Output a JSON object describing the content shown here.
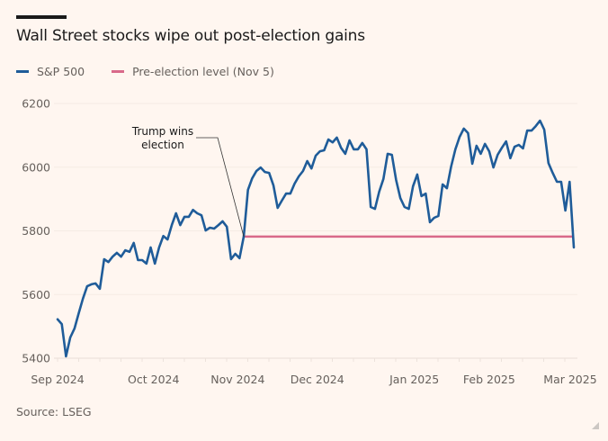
{
  "header": {
    "title": "Wall Street stocks wipe out post-election gains"
  },
  "legend": [
    {
      "label": "S&P 500",
      "color": "#1f5c99"
    },
    {
      "label": "Pre-election level (Nov 5)",
      "color": "#d9698a"
    }
  ],
  "footer": {
    "source": "Source: LSEG"
  },
  "chart_data": {
    "type": "line",
    "title": "Wall Street stocks wipe out post-election gains",
    "xlabel": "",
    "ylabel": "",
    "ylim": [
      5400,
      6200
    ],
    "yticks": [
      5400,
      5600,
      5800,
      6000,
      6200
    ],
    "xtick_labels": [
      "Sep 2024",
      "Oct 2024",
      "Nov 2024",
      "Dec 2024",
      "Jan 2025",
      "Feb 2025",
      "Mar 2025"
    ],
    "xtick_positions": [
      0,
      0.186,
      0.349,
      0.503,
      0.691,
      0.836,
      0.993
    ],
    "grid": true,
    "legend_position": "top-left",
    "series": [
      {
        "name": "S&P 500",
        "color": "#1f5c99",
        "x_range": [
          "Sep 2024",
          "Mar 2025"
        ],
        "values": [
          5522,
          5507,
          5406,
          5465,
          5493,
          5541,
          5587,
          5626,
          5632,
          5635,
          5618,
          5711,
          5702,
          5719,
          5731,
          5719,
          5739,
          5734,
          5762,
          5708,
          5708,
          5697,
          5748,
          5697,
          5748,
          5784,
          5773,
          5818,
          5855,
          5818,
          5844,
          5844,
          5866,
          5855,
          5849,
          5801,
          5810,
          5807,
          5818,
          5830,
          5813,
          5711,
          5728,
          5714,
          5782,
          5929,
          5965,
          5988,
          5999,
          5985,
          5982,
          5943,
          5872,
          5895,
          5917,
          5917,
          5948,
          5971,
          5988,
          6019,
          5996,
          6036,
          6050,
          6053,
          6087,
          6078,
          6093,
          6061,
          6042,
          6084,
          6056,
          6056,
          6076,
          6056,
          5875,
          5869,
          5923,
          5963,
          6042,
          6039,
          5960,
          5903,
          5875,
          5869,
          5940,
          5977,
          5909,
          5917,
          5827,
          5841,
          5847,
          5946,
          5934,
          6002,
          6056,
          6095,
          6121,
          6107,
          6011,
          6067,
          6042,
          6073,
          6050,
          5999,
          6039,
          6061,
          6081,
          6028,
          6064,
          6070,
          6059,
          6115,
          6115,
          6129,
          6146,
          6118,
          6013,
          5982,
          5954,
          5954,
          5864,
          5954,
          5748
        ]
      },
      {
        "name": "Pre-election level (Nov 5)",
        "color": "#d9698a",
        "value": 5782,
        "start_index": 44
      }
    ],
    "annotations": [
      {
        "text_lines": [
          "Trump wins",
          "election"
        ],
        "target_index": 44
      }
    ]
  }
}
